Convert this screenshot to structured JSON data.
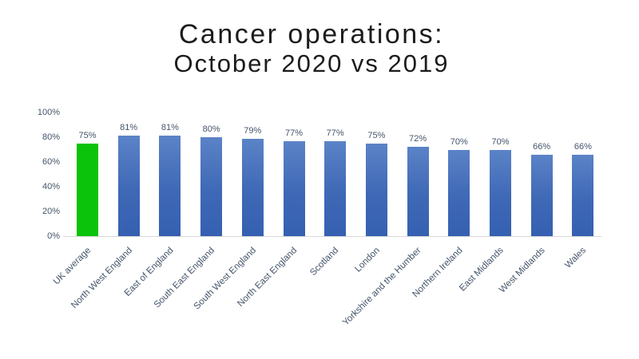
{
  "title": {
    "line1": "Cancer operations:",
    "line2": "October 2020 vs 2019"
  },
  "chart_data": {
    "type": "bar",
    "title": "Cancer operations: October 2020 vs 2019",
    "categories": [
      "UK average",
      "North West England",
      "East of England",
      "South East England",
      "South West England",
      "North East England",
      "Scotland",
      "London",
      "Yorkshire and the Humber",
      "Northern Ireland",
      "East Midlands",
      "West Midlands",
      "Wales"
    ],
    "values": [
      75,
      81,
      81,
      80,
      79,
      77,
      77,
      75,
      72,
      70,
      70,
      66,
      66
    ],
    "data_labels": [
      "75%",
      "81%",
      "81%",
      "80%",
      "79%",
      "77%",
      "77%",
      "75%",
      "72%",
      "70%",
      "70%",
      "66%",
      "66%"
    ],
    "xlabel": "",
    "ylabel": "",
    "ylim": [
      0,
      100
    ],
    "yticks": [
      "0%",
      "20%",
      "40%",
      "60%",
      "80%",
      "100%"
    ],
    "grid": false,
    "legend": "none",
    "highlight_index": 0,
    "colors": {
      "highlight_bar": "#0bc30b",
      "bar_gradient_top": "#5b83c7",
      "bar_gradient_bottom": "#3560b1",
      "labels": "#44546a",
      "axis_line": "#d9d9d9",
      "title_text": "#1c1c1c"
    }
  }
}
